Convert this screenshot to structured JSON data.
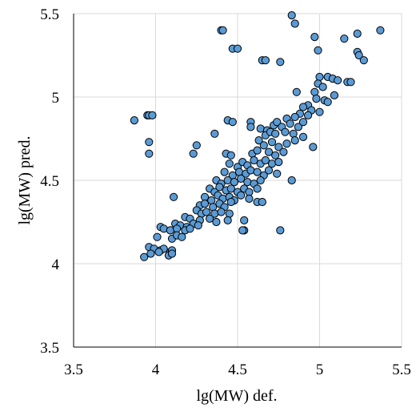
{
  "chart_data": {
    "type": "scatter",
    "xlabel": "lg(MW) def.",
    "ylabel": "lg(MW) pred.",
    "xlim": [
      3.5,
      5.5
    ],
    "ylim": [
      3.5,
      5.5
    ],
    "x_ticks": [
      "3.5",
      "4",
      "4.5",
      "5",
      "5.5"
    ],
    "y_ticks": [
      "3.5",
      "4",
      "4.5",
      "5",
      "5.5"
    ],
    "x_tick_values": [
      3.5,
      4,
      4.5,
      5,
      5.5
    ],
    "y_tick_values": [
      3.5,
      4,
      4.5,
      5,
      5.5
    ],
    "grid": true,
    "colors": {
      "marker_fill": "#5b9bd5",
      "marker_edge": "#000000",
      "grid": "#d9d9d9"
    },
    "points": [
      [
        4.83,
        5.49
      ],
      [
        4.85,
        5.44
      ],
      [
        4.4,
        5.4
      ],
      [
        4.41,
        5.4
      ],
      [
        5.37,
        5.4
      ],
      [
        5.23,
        5.38
      ],
      [
        4.97,
        5.36
      ],
      [
        5.15,
        5.35
      ],
      [
        4.47,
        5.29
      ],
      [
        4.5,
        5.29
      ],
      [
        4.99,
        5.28
      ],
      [
        5.23,
        5.27
      ],
      [
        5.24,
        5.25
      ],
      [
        4.65,
        5.22
      ],
      [
        4.67,
        5.22
      ],
      [
        4.76,
        5.21
      ],
      [
        5.27,
        5.22
      ],
      [
        5.0,
        5.12
      ],
      [
        5.05,
        5.12
      ],
      [
        5.08,
        5.11
      ],
      [
        5.11,
        5.1
      ],
      [
        5.17,
        5.09
      ],
      [
        5.19,
        5.09
      ],
      [
        4.99,
        5.08
      ],
      [
        5.02,
        5.06
      ],
      [
        4.97,
        5.03
      ],
      [
        4.86,
        5.03
      ],
      [
        5.09,
        5.01
      ],
      [
        4.98,
        4.99
      ],
      [
        5.03,
        4.98
      ],
      [
        5.05,
        4.97
      ],
      [
        4.93,
        4.95
      ],
      [
        4.9,
        4.94
      ],
      [
        4.88,
        4.9
      ],
      [
        4.95,
        4.92
      ],
      [
        5.0,
        4.91
      ],
      [
        4.85,
        4.88
      ],
      [
        4.8,
        4.87
      ],
      [
        4.93,
        4.89
      ],
      [
        3.87,
        4.86
      ],
      [
        3.95,
        4.89
      ],
      [
        3.96,
        4.89
      ],
      [
        3.98,
        4.89
      ],
      [
        4.44,
        4.86
      ],
      [
        4.47,
        4.85
      ],
      [
        4.58,
        4.85
      ],
      [
        4.58,
        4.82
      ],
      [
        4.64,
        4.81
      ],
      [
        4.68,
        4.8
      ],
      [
        4.72,
        4.83
      ],
      [
        4.74,
        4.85
      ],
      [
        4.77,
        4.82
      ],
      [
        4.82,
        4.84
      ],
      [
        4.87,
        4.82
      ],
      [
        4.9,
        4.85
      ],
      [
        4.36,
        4.78
      ],
      [
        4.67,
        4.77
      ],
      [
        4.7,
        4.79
      ],
      [
        4.73,
        4.78
      ],
      [
        4.79,
        4.79
      ],
      [
        4.84,
        4.78
      ],
      [
        4.9,
        4.76
      ],
      [
        3.96,
        4.73
      ],
      [
        4.25,
        4.71
      ],
      [
        4.63,
        4.74
      ],
      [
        4.66,
        4.71
      ],
      [
        4.71,
        4.73
      ],
      [
        4.75,
        4.7
      ],
      [
        4.8,
        4.72
      ],
      [
        4.85,
        4.74
      ],
      [
        4.96,
        4.7
      ],
      [
        3.96,
        4.66
      ],
      [
        4.23,
        4.66
      ],
      [
        4.43,
        4.66
      ],
      [
        4.46,
        4.65
      ],
      [
        4.59,
        4.66
      ],
      [
        4.62,
        4.68
      ],
      [
        4.69,
        4.67
      ],
      [
        4.73,
        4.65
      ],
      [
        4.78,
        4.67
      ],
      [
        4.45,
        4.6
      ],
      [
        4.5,
        4.58
      ],
      [
        4.53,
        4.61
      ],
      [
        4.56,
        4.59
      ],
      [
        4.6,
        4.62
      ],
      [
        4.64,
        4.6
      ],
      [
        4.67,
        4.62
      ],
      [
        4.71,
        4.6
      ],
      [
        4.75,
        4.61
      ],
      [
        4.42,
        4.55
      ],
      [
        4.47,
        4.53
      ],
      [
        4.51,
        4.55
      ],
      [
        4.55,
        4.54
      ],
      [
        4.58,
        4.56
      ],
      [
        4.62,
        4.55
      ],
      [
        4.66,
        4.53
      ],
      [
        4.69,
        4.56
      ],
      [
        4.74,
        4.54
      ],
      [
        4.37,
        4.5
      ],
      [
        4.4,
        4.48
      ],
      [
        4.44,
        4.5
      ],
      [
        4.48,
        4.49
      ],
      [
        4.52,
        4.51
      ],
      [
        4.56,
        4.49
      ],
      [
        4.6,
        4.48
      ],
      [
        4.64,
        4.5
      ],
      [
        4.83,
        4.5
      ],
      [
        4.33,
        4.45
      ],
      [
        4.36,
        4.43
      ],
      [
        4.39,
        4.46
      ],
      [
        4.43,
        4.44
      ],
      [
        4.46,
        4.45
      ],
      [
        4.5,
        4.43
      ],
      [
        4.54,
        4.45
      ],
      [
        4.57,
        4.43
      ],
      [
        4.62,
        4.45
      ],
      [
        4.3,
        4.4
      ],
      [
        4.34,
        4.38
      ],
      [
        4.38,
        4.41
      ],
      [
        4.41,
        4.39
      ],
      [
        4.45,
        4.4
      ],
      [
        4.48,
        4.38
      ],
      [
        4.52,
        4.41
      ],
      [
        4.57,
        4.39
      ],
      [
        4.11,
        4.4
      ],
      [
        4.27,
        4.35
      ],
      [
        4.3,
        4.36
      ],
      [
        4.35,
        4.34
      ],
      [
        4.39,
        4.36
      ],
      [
        4.42,
        4.34
      ],
      [
        4.46,
        4.37
      ],
      [
        4.62,
        4.37
      ],
      [
        4.65,
        4.37
      ],
      [
        4.25,
        4.32
      ],
      [
        4.28,
        4.3
      ],
      [
        4.31,
        4.31
      ],
      [
        4.36,
        4.3
      ],
      [
        4.4,
        4.31
      ],
      [
        4.45,
        4.3
      ],
      [
        4.18,
        4.28
      ],
      [
        4.21,
        4.27
      ],
      [
        4.27,
        4.26
      ],
      [
        4.33,
        4.27
      ],
      [
        4.37,
        4.25
      ],
      [
        4.44,
        4.26
      ],
      [
        4.54,
        4.26
      ],
      [
        4.12,
        4.24
      ],
      [
        4.15,
        4.23
      ],
      [
        4.19,
        4.22
      ],
      [
        4.23,
        4.24
      ],
      [
        4.26,
        4.23
      ],
      [
        4.03,
        4.22
      ],
      [
        4.05,
        4.21
      ],
      [
        4.09,
        4.2
      ],
      [
        4.13,
        4.21
      ],
      [
        4.18,
        4.2
      ],
      [
        4.21,
        4.21
      ],
      [
        4.54,
        4.2
      ],
      [
        4.53,
        4.2
      ],
      [
        4.76,
        4.2
      ],
      [
        4.01,
        4.16
      ],
      [
        4.1,
        4.15
      ],
      [
        4.13,
        4.17
      ],
      [
        4.16,
        4.16
      ],
      [
        3.96,
        4.1
      ],
      [
        3.99,
        4.09
      ],
      [
        4.03,
        4.08
      ],
      [
        4.05,
        4.09
      ],
      [
        4.09,
        4.07
      ],
      [
        4.1,
        4.08
      ],
      [
        3.93,
        4.04
      ],
      [
        3.97,
        4.06
      ],
      [
        4.02,
        4.07
      ],
      [
        4.08,
        4.05
      ],
      [
        4.1,
        4.06
      ]
    ]
  }
}
